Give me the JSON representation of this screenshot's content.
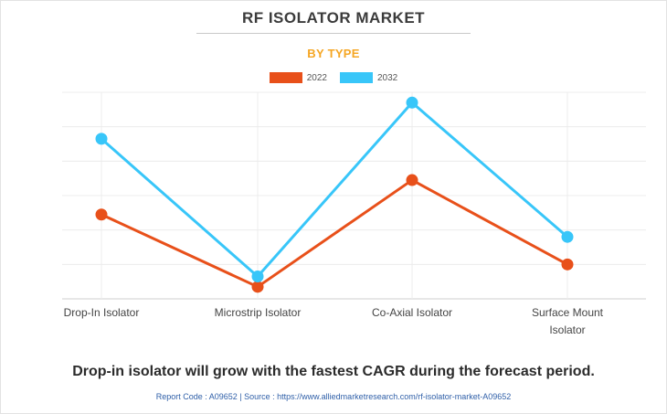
{
  "header": {
    "title": "RF ISOLATOR MARKET",
    "subtitle": "BY TYPE"
  },
  "legend": [
    {
      "label": "2022",
      "color": "#e8501a"
    },
    {
      "label": "2032",
      "color": "#38c6f9"
    }
  ],
  "chart_data": {
    "type": "line",
    "categories": [
      "Drop-In Isolator",
      "Microstrip Isolator",
      "Co-Axial Isolator",
      "Surface Mount Isolator"
    ],
    "category_lines": [
      [
        "Drop-In Isolator"
      ],
      [
        "Microstrip Isolator"
      ],
      [
        "Co-Axial Isolator"
      ],
      [
        "Surface Mount",
        "Isolator"
      ]
    ],
    "series": [
      {
        "name": "2022",
        "color": "#e8501a",
        "values": [
          2.45,
          0.35,
          3.45,
          1.0
        ]
      },
      {
        "name": "2032",
        "color": "#38c6f9",
        "values": [
          4.65,
          0.65,
          5.7,
          1.8
        ]
      }
    ],
    "ylim": [
      0,
      6
    ],
    "y_tick_labels_shown": false,
    "grid": true,
    "legend_position": "top-center",
    "xlabel": "",
    "ylabel": ""
  },
  "footer": {
    "statement": "Drop-in isolator will grow with the fastest CAGR during the forecast period.",
    "source": "Report Code : A09652  |  Source : https://www.alliedmarketresearch.com/rf-isolator-market-A09652"
  }
}
